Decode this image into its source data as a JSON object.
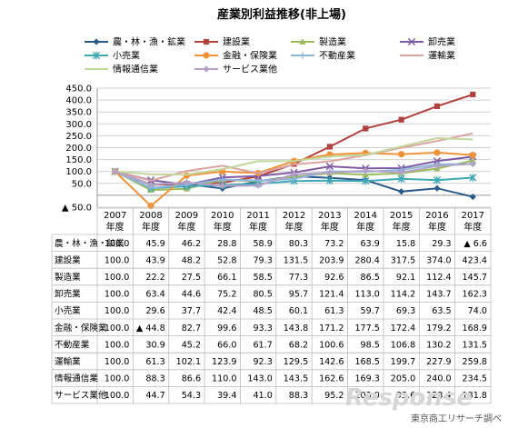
{
  "chart_data": {
    "type": "line",
    "title": "産業別利益推移(非上場)",
    "categories": [
      "2007\n年度",
      "2008\n年度",
      "2009\n年度",
      "2010\n年度",
      "2011\n年度",
      "2012\n年度",
      "2013\n年度",
      "2014\n年度",
      "2015\n年度",
      "2016\n年度",
      "2017\n年度"
    ],
    "x_labels_top": [
      "2007",
      "2008",
      "2009",
      "2010",
      "2011",
      "2012",
      "2013",
      "2014",
      "2015",
      "2016",
      "2017"
    ],
    "x_labels_bottom": "年度",
    "ylim": [
      -50,
      450
    ],
    "yticks": [
      450,
      400,
      350,
      300,
      250,
      200,
      150,
      100,
      50,
      -50
    ],
    "ytick_labels": [
      "450.0",
      "400.0",
      "350.0",
      "300.0",
      "250.0",
      "200.0",
      "150.0",
      "100.0",
      "50.0",
      "▲ 50.0"
    ],
    "grid": true,
    "legend_position": "top",
    "series": [
      {
        "name": "農・林・漁・鉱業",
        "color": "#2e5a8a",
        "marker": "diamond",
        "values": [
          100.0,
          45.9,
          46.2,
          28.8,
          58.9,
          80.3,
          73.2,
          63.9,
          15.8,
          29.3,
          -6.6
        ]
      },
      {
        "name": "建設業",
        "color": "#b0413e",
        "marker": "square",
        "values": [
          100.0,
          43.9,
          48.2,
          52.8,
          79.3,
          131.5,
          203.9,
          280.4,
          317.5,
          374.0,
          423.4
        ]
      },
      {
        "name": "製造業",
        "color": "#9bbb59",
        "marker": "triangle",
        "values": [
          100.0,
          22.2,
          27.5,
          66.1,
          58.5,
          77.3,
          92.6,
          86.5,
          92.1,
          112.4,
          145.7
        ]
      },
      {
        "name": "卸売業",
        "color": "#7e5ba4",
        "marker": "x",
        "values": [
          100.0,
          63.4,
          44.6,
          75.2,
          80.5,
          95.7,
          121.4,
          113.0,
          114.2,
          143.7,
          162.3
        ]
      },
      {
        "name": "小売業",
        "color": "#3fa8b6",
        "marker": "star",
        "values": [
          100.0,
          29.6,
          37.7,
          42.4,
          48.5,
          60.1,
          61.3,
          59.7,
          69.3,
          63.5,
          74.0
        ]
      },
      {
        "name": "金融・保険業",
        "color": "#f0923a",
        "marker": "circle",
        "values": [
          100.0,
          -44.8,
          82.7,
          99.6,
          93.3,
          143.8,
          171.2,
          177.5,
          172.4,
          179.2,
          168.9
        ]
      },
      {
        "name": "不動産業",
        "color": "#8fb4db",
        "marker": "plus",
        "values": [
          100.0,
          30.9,
          45.2,
          66.0,
          61.7,
          68.2,
          100.6,
          98.5,
          106.8,
          130.2,
          131.5
        ]
      },
      {
        "name": "運輸業",
        "color": "#d9a3a1",
        "marker": "none",
        "values": [
          100.0,
          61.3,
          102.1,
          123.9,
          92.3,
          129.5,
          142.6,
          168.5,
          199.7,
          227.9,
          259.8
        ]
      },
      {
        "name": "情報通信業",
        "color": "#c3d69b",
        "marker": "none",
        "values": [
          100.0,
          88.3,
          86.6,
          110.0,
          143.0,
          143.5,
          162.6,
          169.3,
          205.0,
          240.0,
          234.5
        ]
      },
      {
        "name": "サービス業他",
        "color": "#b3a2c7",
        "marker": "diamond",
        "values": [
          100.0,
          44.7,
          54.3,
          39.4,
          41.0,
          88.3,
          95.2,
          103.0,
          95.6,
          123.4,
          131.8
        ]
      }
    ],
    "table": {
      "rows": [
        {
          "label": "農・林・漁・鉱業",
          "cells": [
            "100.0",
            "45.9",
            "46.2",
            "28.8",
            "58.9",
            "80.3",
            "73.2",
            "63.9",
            "15.8",
            "29.3",
            "▲ 6.6"
          ]
        },
        {
          "label": "建設業",
          "cells": [
            "100.0",
            "43.9",
            "48.2",
            "52.8",
            "79.3",
            "131.5",
            "203.9",
            "280.4",
            "317.5",
            "374.0",
            "423.4"
          ]
        },
        {
          "label": "製造業",
          "cells": [
            "100.0",
            "22.2",
            "27.5",
            "66.1",
            "58.5",
            "77.3",
            "92.6",
            "86.5",
            "92.1",
            "112.4",
            "145.7"
          ]
        },
        {
          "label": "卸売業",
          "cells": [
            "100.0",
            "63.4",
            "44.6",
            "75.2",
            "80.5",
            "95.7",
            "121.4",
            "113.0",
            "114.2",
            "143.7",
            "162.3"
          ]
        },
        {
          "label": "小売業",
          "cells": [
            "100.0",
            "29.6",
            "37.7",
            "42.4",
            "48.5",
            "60.1",
            "61.3",
            "59.7",
            "69.3",
            "63.5",
            "74.0"
          ]
        },
        {
          "label": "金融・保険業",
          "cells": [
            "100.0",
            "▲ 44.8",
            "82.7",
            "99.6",
            "93.3",
            "143.8",
            "171.2",
            "177.5",
            "172.4",
            "179.2",
            "168.9"
          ]
        },
        {
          "label": "不動産業",
          "cells": [
            "100.0",
            "30.9",
            "45.2",
            "66.0",
            "61.7",
            "68.2",
            "100.6",
            "98.5",
            "106.8",
            "130.2",
            "131.5"
          ]
        },
        {
          "label": "運輸業",
          "cells": [
            "100.0",
            "61.3",
            "102.1",
            "123.9",
            "92.3",
            "129.5",
            "142.6",
            "168.5",
            "199.7",
            "227.9",
            "259.8"
          ]
        },
        {
          "label": "情報通信業",
          "cells": [
            "100.0",
            "88.3",
            "86.6",
            "110.0",
            "143.0",
            "143.5",
            "162.6",
            "169.3",
            "205.0",
            "240.0",
            "234.5"
          ]
        },
        {
          "label": "サービス業他",
          "cells": [
            "100.0",
            "44.7",
            "54.3",
            "39.4",
            "41.0",
            "88.3",
            "95.2",
            "103.0",
            "95.6",
            "123.4",
            "131.8"
          ]
        }
      ]
    }
  },
  "footer": {
    "source": "東京商工リサーチ調べ",
    "watermark": "Response"
  }
}
